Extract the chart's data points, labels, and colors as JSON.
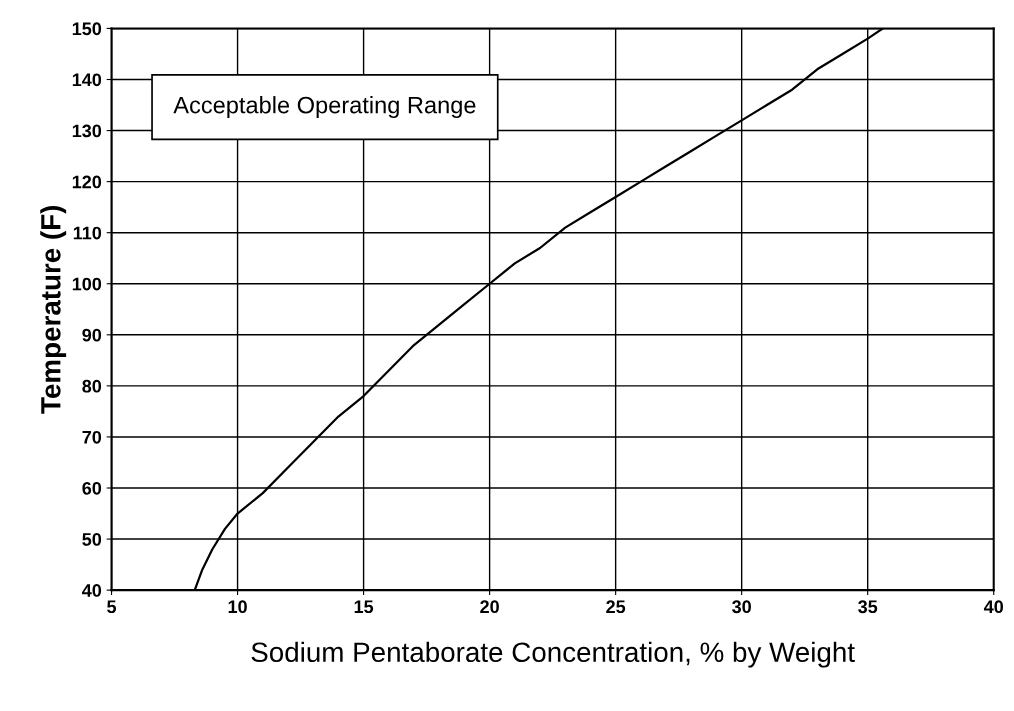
{
  "chart_data": {
    "type": "line",
    "xlabel": "Sodium Pentaborate Concentration, % by Weight",
    "ylabel": "Temperature (F)",
    "x": [
      8.3,
      8.6,
      9,
      9.5,
      10,
      11,
      12,
      13,
      14,
      15,
      16,
      17,
      18,
      19,
      20,
      21,
      22,
      23,
      24,
      25,
      26,
      27,
      28,
      29,
      30,
      31,
      32,
      33,
      34,
      35,
      35.6
    ],
    "values": [
      40,
      44,
      48,
      52,
      55,
      59,
      64,
      69,
      74,
      78,
      83,
      88,
      92,
      96,
      100,
      104,
      107,
      111,
      114,
      117,
      120,
      123,
      126,
      129,
      132,
      135,
      138,
      142,
      145,
      148,
      150
    ],
    "color": "#000000",
    "annotations": [
      "Acceptable Operating Range"
    ],
    "xlim": [
      5,
      40
    ],
    "xticks": [
      5,
      10,
      15,
      20,
      25,
      30,
      35,
      40
    ],
    "ylim": [
      40,
      150
    ],
    "yticks": [
      40,
      50,
      60,
      70,
      80,
      90,
      100,
      110,
      120,
      130,
      140,
      150
    ],
    "grid": true
  }
}
